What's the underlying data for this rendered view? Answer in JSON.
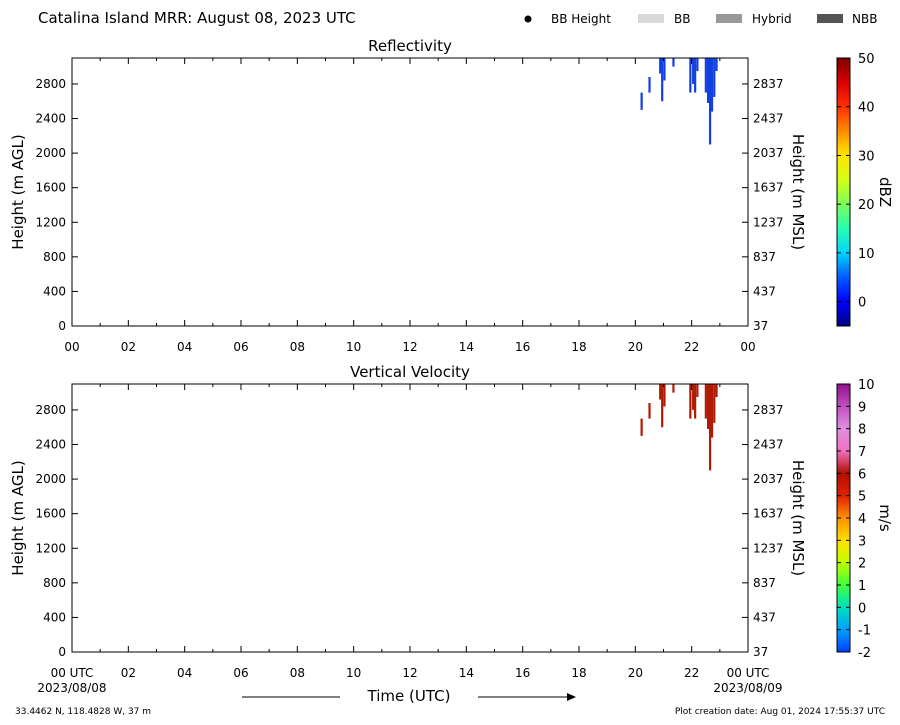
{
  "header": {
    "title": "Catalina Island MRR:  August 08, 2023 UTC",
    "legend": [
      {
        "label": "BB Height",
        "kind": "dot",
        "color": "#000000"
      },
      {
        "label": "BB",
        "kind": "swatch",
        "color": "#d9d9d9"
      },
      {
        "label": "Hybrid",
        "kind": "swatch",
        "color": "#999999"
      },
      {
        "label": "NBB",
        "kind": "swatch",
        "color": "#555555"
      }
    ]
  },
  "footer": {
    "location": "33.4462 N, 118.4828 W, 37 m",
    "creation": "Plot creation date: Aug 01, 2024 17:55:37 UTC",
    "xlabel": "Time (UTC)",
    "start_date": "2023/08/08",
    "end_date": "2023/08/09"
  },
  "chart_data": [
    {
      "type": "heatmap",
      "title": "Reflectivity",
      "ylabel_left": "Height (m AGL)",
      "ylabel_right": "Height (m MSL)",
      "xlim": [
        0,
        24
      ],
      "ylim": [
        0,
        3100
      ],
      "xticks": [
        "00",
        "02",
        "04",
        "06",
        "08",
        "10",
        "12",
        "14",
        "16",
        "18",
        "20",
        "22",
        "00"
      ],
      "yticks_left": [
        "0",
        "400",
        "800",
        "1200",
        "1600",
        "2000",
        "2400",
        "2800"
      ],
      "yticks_right": [
        "37",
        "437",
        "837",
        "1237",
        "1637",
        "2037",
        "2437",
        "2837"
      ],
      "colorbar": {
        "label": "dBZ",
        "range": [
          -5,
          50
        ],
        "ticks": [
          "0",
          "10",
          "20",
          "30",
          "40",
          "50"
        ],
        "tick_values": [
          0,
          10,
          20,
          30,
          40,
          50
        ],
        "stops": [
          [
            -5,
            "#00007f"
          ],
          [
            0,
            "#0000ff"
          ],
          [
            5,
            "#005cff"
          ],
          [
            10,
            "#00d4ff"
          ],
          [
            15,
            "#27ffb0"
          ],
          [
            20,
            "#7cff5a"
          ],
          [
            25,
            "#d4ff14"
          ],
          [
            30,
            "#ffe600"
          ],
          [
            35,
            "#ff8c00"
          ],
          [
            40,
            "#ff3000"
          ],
          [
            45,
            "#d80000"
          ],
          [
            50,
            "#7f0000"
          ]
        ]
      },
      "echo_color": "#1240e0",
      "echoes": [
        {
          "time": 20.22,
          "bottom": 2500,
          "top": 2700
        },
        {
          "time": 20.5,
          "bottom": 2700,
          "top": 2880
        },
        {
          "time": 20.88,
          "bottom": 2920,
          "top": 3100
        },
        {
          "time": 20.95,
          "bottom": 2600,
          "top": 3100
        },
        {
          "time": 21.03,
          "bottom": 2840,
          "top": 3100
        },
        {
          "time": 21.35,
          "bottom": 3000,
          "top": 3100
        },
        {
          "time": 21.95,
          "bottom": 2700,
          "top": 3100
        },
        {
          "time": 22.05,
          "bottom": 2800,
          "top": 3100
        },
        {
          "time": 22.12,
          "bottom": 2700,
          "top": 3100
        },
        {
          "time": 22.2,
          "bottom": 2950,
          "top": 3100
        },
        {
          "time": 22.5,
          "bottom": 2700,
          "top": 3100
        },
        {
          "time": 22.58,
          "bottom": 2580,
          "top": 3100
        },
        {
          "time": 22.65,
          "bottom": 2100,
          "top": 3100
        },
        {
          "time": 22.72,
          "bottom": 2480,
          "top": 3100
        },
        {
          "time": 22.8,
          "bottom": 2650,
          "top": 3100
        },
        {
          "time": 22.88,
          "bottom": 2950,
          "top": 3100
        }
      ]
    },
    {
      "type": "heatmap",
      "title": "Vertical Velocity",
      "ylabel_left": "Height (m AGL)",
      "ylabel_right": "Height (m MSL)",
      "xlim": [
        0,
        24
      ],
      "ylim": [
        0,
        3100
      ],
      "xticks": [
        "00 UTC",
        "02",
        "04",
        "06",
        "08",
        "10",
        "12",
        "14",
        "16",
        "18",
        "20",
        "22",
        "00 UTC"
      ],
      "yticks_left": [
        "0",
        "400",
        "800",
        "1200",
        "1600",
        "2000",
        "2400",
        "2800"
      ],
      "yticks_right": [
        "37",
        "437",
        "837",
        "1237",
        "1637",
        "2037",
        "2437",
        "2837"
      ],
      "colorbar": {
        "label": "m/s",
        "range": [
          -2,
          10
        ],
        "ticks": [
          "-2",
          "-1",
          "0",
          "1",
          "2",
          "3",
          "4",
          "5",
          "6",
          "7",
          "8",
          "9",
          "10"
        ],
        "tick_values": [
          -2,
          -1,
          0,
          1,
          2,
          3,
          4,
          5,
          6,
          7,
          8,
          9,
          10
        ],
        "stops": [
          [
            -2,
            "#0040ff"
          ],
          [
            -1,
            "#00a0ff"
          ],
          [
            0,
            "#00e0c0"
          ],
          [
            1,
            "#40ff40"
          ],
          [
            2,
            "#c0ff00"
          ],
          [
            3,
            "#ffe000"
          ],
          [
            4,
            "#ff9000"
          ],
          [
            5,
            "#e02000"
          ],
          [
            6,
            "#b01000"
          ],
          [
            7,
            "#f070c0"
          ],
          [
            8,
            "#e090e0"
          ],
          [
            9,
            "#c050c0"
          ],
          [
            10,
            "#901090"
          ]
        ]
      },
      "echo_color": "#b01a00",
      "echoes": [
        {
          "time": 20.22,
          "bottom": 2500,
          "top": 2700
        },
        {
          "time": 20.5,
          "bottom": 2700,
          "top": 2880
        },
        {
          "time": 20.88,
          "bottom": 2920,
          "top": 3100
        },
        {
          "time": 20.95,
          "bottom": 2600,
          "top": 3100
        },
        {
          "time": 21.03,
          "bottom": 2840,
          "top": 3100
        },
        {
          "time": 21.35,
          "bottom": 3000,
          "top": 3100
        },
        {
          "time": 21.95,
          "bottom": 2700,
          "top": 3100
        },
        {
          "time": 22.05,
          "bottom": 2800,
          "top": 3100
        },
        {
          "time": 22.12,
          "bottom": 2700,
          "top": 3100
        },
        {
          "time": 22.2,
          "bottom": 2950,
          "top": 3100
        },
        {
          "time": 22.5,
          "bottom": 2700,
          "top": 3100
        },
        {
          "time": 22.58,
          "bottom": 2580,
          "top": 3100
        },
        {
          "time": 22.65,
          "bottom": 2100,
          "top": 3100
        },
        {
          "time": 22.72,
          "bottom": 2480,
          "top": 3100
        },
        {
          "time": 22.8,
          "bottom": 2650,
          "top": 3100
        },
        {
          "time": 22.88,
          "bottom": 2950,
          "top": 3100
        }
      ]
    }
  ]
}
